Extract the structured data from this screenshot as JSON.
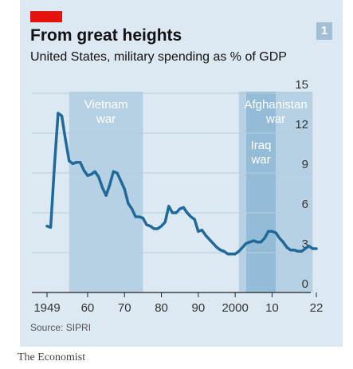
{
  "header": {
    "title": "From great heights",
    "subtitle": "United States, military spending as % of GDP",
    "badge": "1"
  },
  "footer": {
    "source": "Source: SIPRI",
    "brand": "The Economist"
  },
  "colors": {
    "panel": "#dce9f2",
    "band": "#a9c8de",
    "band_overlap": "#8fb8d3",
    "line": "#1f6a9a",
    "accent": "#e3120b",
    "shade_label": "#ffffff"
  },
  "chart_data": {
    "type": "line",
    "title": "From great heights",
    "subtitle": "United States, military spending as % of GDP",
    "xlabel": "",
    "ylabel": "",
    "xlim": [
      1949,
      2022
    ],
    "ylim": [
      0,
      15
    ],
    "y_ticks": [
      0,
      3,
      6,
      9,
      12,
      15
    ],
    "y_axis_position": "right",
    "x_ticks": [
      {
        "value": 1949,
        "label": "1949"
      },
      {
        "value": 1960,
        "label": "60"
      },
      {
        "value": 1970,
        "label": "70"
      },
      {
        "value": 1980,
        "label": "80"
      },
      {
        "value": 1990,
        "label": "90"
      },
      {
        "value": 2000,
        "label": "2000"
      },
      {
        "value": 2010,
        "label": "10"
      },
      {
        "value": 2022,
        "label": "22"
      }
    ],
    "grid": "horizontal",
    "shaded_periods": [
      {
        "label": [
          "Vietnam",
          "war"
        ],
        "start": 1955,
        "end": 1975
      },
      {
        "label": [
          "Afghanistan",
          "war"
        ],
        "start": 2001,
        "end": 2021
      },
      {
        "label": [
          "Iraq",
          "war"
        ],
        "start": 2003,
        "end": 2011
      }
    ],
    "series": [
      {
        "x": [
          1949,
          1950,
          1951,
          1952,
          1953,
          1954,
          1955,
          1956,
          1957,
          1958,
          1959,
          1960,
          1961,
          1962,
          1963,
          1964,
          1965,
          1966,
          1967,
          1968,
          1969,
          1970,
          1971,
          1972,
          1973,
          1974,
          1975,
          1976,
          1977,
          1978,
          1979,
          1980,
          1981,
          1982,
          1983,
          1984,
          1985,
          1986,
          1987,
          1988,
          1989,
          1990,
          1991,
          1992,
          1993,
          1994,
          1995,
          1996,
          1997,
          1998,
          1999,
          2000,
          2001,
          2002,
          2003,
          2004,
          2005,
          2006,
          2007,
          2008,
          2009,
          2010,
          2011,
          2012,
          2013,
          2014,
          2015,
          2016,
          2017,
          2018,
          2019,
          2020,
          2021,
          2022
        ],
        "values": [
          5.0,
          4.9,
          9.5,
          13.5,
          13.3,
          11.5,
          9.9,
          9.7,
          9.8,
          9.8,
          9.2,
          8.8,
          8.9,
          9.1,
          8.7,
          7.9,
          7.3,
          8.1,
          9.1,
          9.0,
          8.4,
          7.8,
          6.7,
          6.3,
          5.7,
          5.7,
          5.6,
          5.1,
          5.0,
          4.8,
          4.8,
          5.0,
          5.3,
          6.5,
          6.0,
          6.0,
          6.3,
          6.4,
          6.0,
          5.7,
          5.5,
          4.6,
          4.7,
          4.3,
          4.0,
          3.7,
          3.4,
          3.2,
          3.1,
          2.9,
          2.9,
          2.9,
          3.1,
          3.4,
          3.7,
          3.8,
          3.9,
          3.8,
          3.8,
          4.1,
          4.6,
          4.6,
          4.5,
          4.1,
          3.8,
          3.4,
          3.2,
          3.2,
          3.1,
          3.1,
          3.3,
          3.5,
          3.3,
          3.3
        ]
      }
    ]
  }
}
